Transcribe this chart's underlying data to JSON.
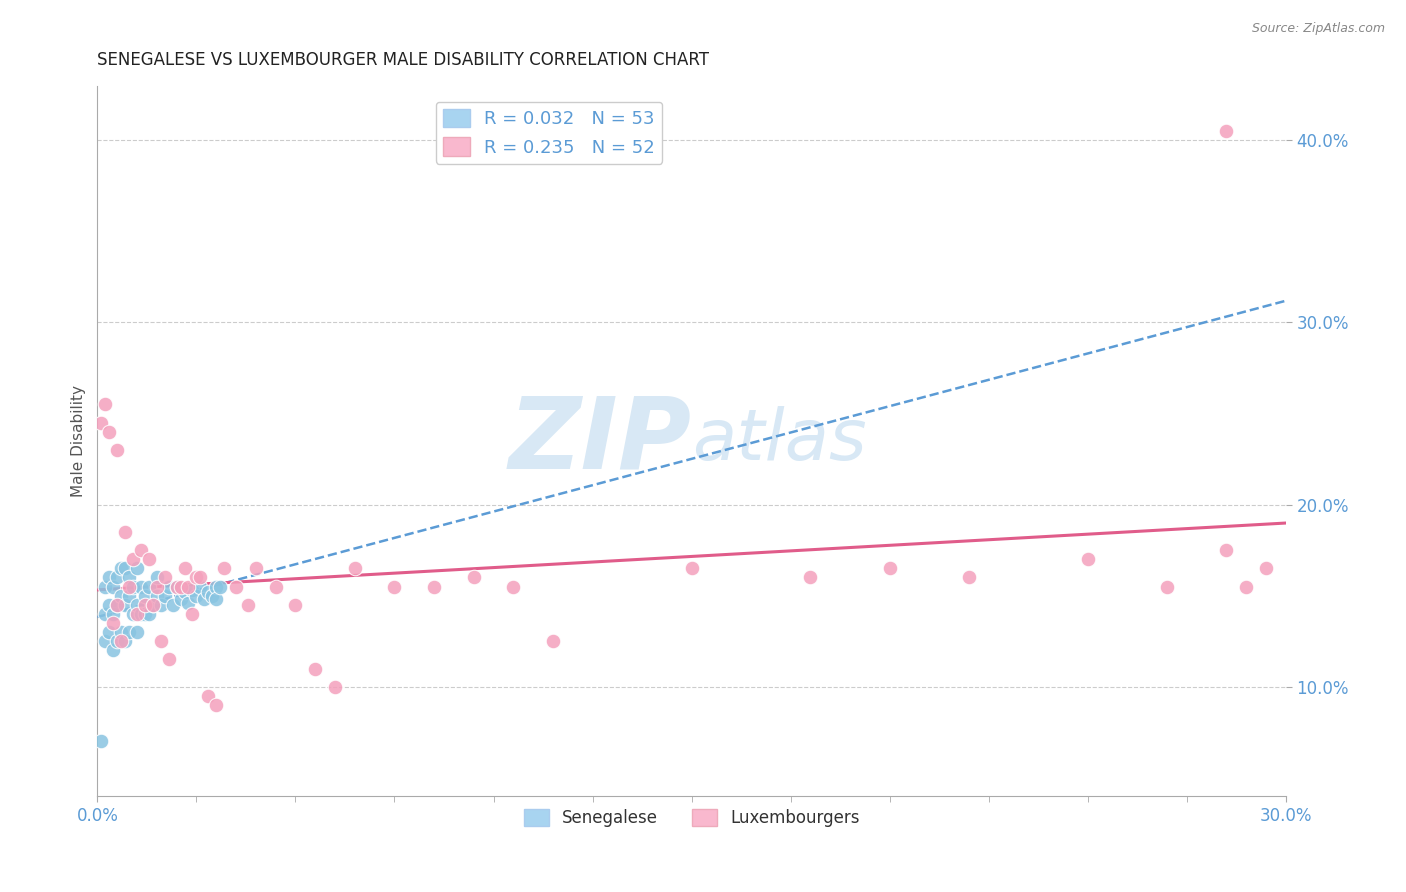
{
  "title": "SENEGALESE VS LUXEMBOURGER MALE DISABILITY CORRELATION CHART",
  "source": "Source: ZipAtlas.com",
  "xlim": [
    0.0,
    0.3
  ],
  "ylim": [
    0.04,
    0.43
  ],
  "ylabel": "Male Disability",
  "legend_entries": [
    {
      "label": "R = 0.032   N = 53",
      "color": "#a8d4f0"
    },
    {
      "label": "R = 0.235   N = 52",
      "color": "#f9b8ce"
    }
  ],
  "legend_series": [
    "Senegalese",
    "Luxembourgers"
  ],
  "senegalese_color": "#89c4e1",
  "luxembourger_color": "#f4a0bc",
  "trend_senegalese_color": "#5b9bd5",
  "trend_luxembourger_color": "#e05c8a",
  "watermark_color": "#d8e8f5",
  "background_color": "#ffffff",
  "senegalese_x": [
    0.001,
    0.002,
    0.002,
    0.002,
    0.003,
    0.003,
    0.003,
    0.004,
    0.004,
    0.004,
    0.005,
    0.005,
    0.005,
    0.006,
    0.006,
    0.006,
    0.007,
    0.007,
    0.007,
    0.008,
    0.008,
    0.008,
    0.009,
    0.009,
    0.01,
    0.01,
    0.01,
    0.011,
    0.011,
    0.012,
    0.012,
    0.013,
    0.013,
    0.014,
    0.015,
    0.015,
    0.016,
    0.017,
    0.018,
    0.019,
    0.02,
    0.021,
    0.022,
    0.023,
    0.024,
    0.025,
    0.026,
    0.027,
    0.028,
    0.029,
    0.03,
    0.03,
    0.031
  ],
  "senegalese_y": [
    0.07,
    0.125,
    0.14,
    0.155,
    0.13,
    0.145,
    0.16,
    0.12,
    0.14,
    0.155,
    0.125,
    0.145,
    0.16,
    0.13,
    0.15,
    0.165,
    0.125,
    0.145,
    0.165,
    0.13,
    0.15,
    0.16,
    0.14,
    0.155,
    0.13,
    0.145,
    0.165,
    0.14,
    0.155,
    0.14,
    0.15,
    0.14,
    0.155,
    0.145,
    0.15,
    0.16,
    0.145,
    0.15,
    0.155,
    0.145,
    0.155,
    0.148,
    0.152,
    0.146,
    0.153,
    0.15,
    0.155,
    0.148,
    0.152,
    0.15,
    0.155,
    0.148,
    0.155
  ],
  "luxembourger_x": [
    0.001,
    0.002,
    0.003,
    0.004,
    0.005,
    0.005,
    0.006,
    0.007,
    0.008,
    0.009,
    0.01,
    0.011,
    0.012,
    0.013,
    0.014,
    0.015,
    0.016,
    0.017,
    0.018,
    0.02,
    0.021,
    0.022,
    0.023,
    0.024,
    0.025,
    0.026,
    0.028,
    0.03,
    0.032,
    0.035,
    0.038,
    0.04,
    0.045,
    0.05,
    0.055,
    0.06,
    0.065,
    0.075,
    0.085,
    0.095,
    0.105,
    0.115,
    0.15,
    0.18,
    0.2,
    0.22,
    0.25,
    0.27,
    0.285,
    0.29,
    0.295,
    0.285
  ],
  "luxembourger_y": [
    0.245,
    0.255,
    0.24,
    0.135,
    0.23,
    0.145,
    0.125,
    0.185,
    0.155,
    0.17,
    0.14,
    0.175,
    0.145,
    0.17,
    0.145,
    0.155,
    0.125,
    0.16,
    0.115,
    0.155,
    0.155,
    0.165,
    0.155,
    0.14,
    0.16,
    0.16,
    0.095,
    0.09,
    0.165,
    0.155,
    0.145,
    0.165,
    0.155,
    0.145,
    0.11,
    0.1,
    0.165,
    0.155,
    0.155,
    0.16,
    0.155,
    0.125,
    0.165,
    0.16,
    0.165,
    0.16,
    0.17,
    0.155,
    0.175,
    0.155,
    0.165,
    0.405
  ],
  "xtick_positions": [
    0.0,
    0.3
  ],
  "xtick_labels": [
    "0.0%",
    "30.0%"
  ],
  "ytick_positions": [
    0.1,
    0.2,
    0.3,
    0.4
  ],
  "ytick_labels": [
    "10.0%",
    "20.0%",
    "30.0%",
    "40.0%"
  ]
}
